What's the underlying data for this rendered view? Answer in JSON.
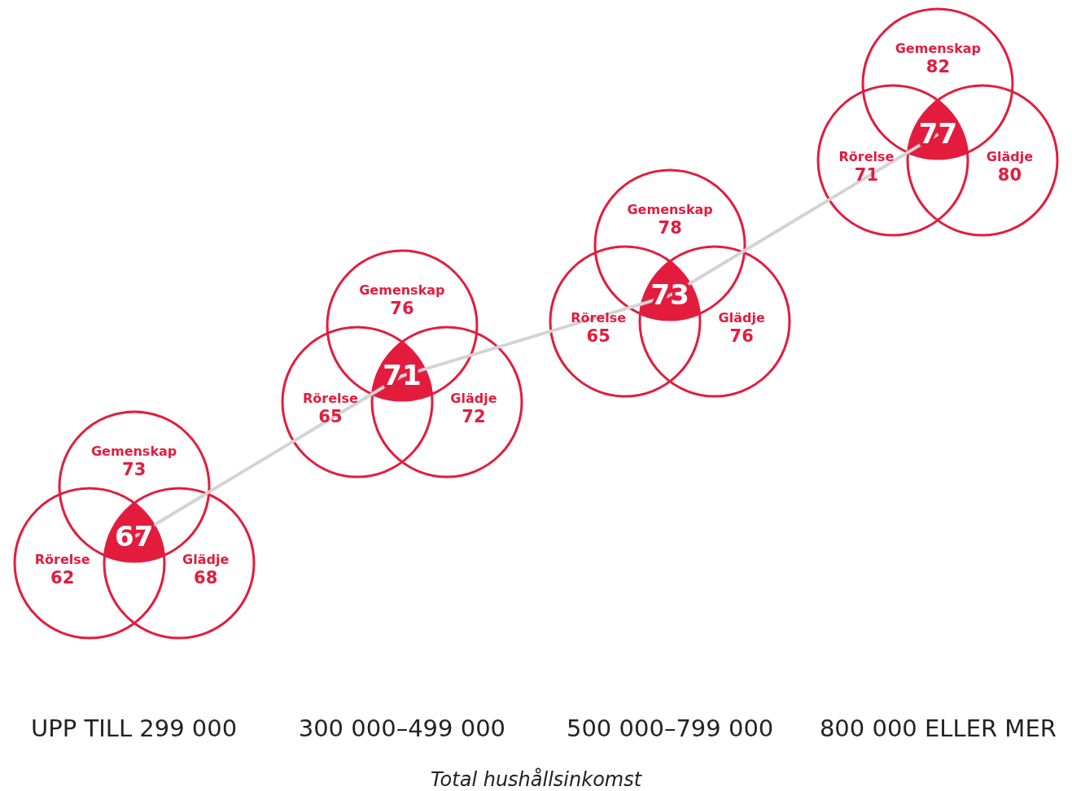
{
  "chart_data": {
    "type": "other",
    "xlabel": "Total hushållsinkomst",
    "categories": [
      "UPP TILL 299 000",
      "300 000–499 000",
      "500 000–799 000",
      "800 000 ELLER MER"
    ],
    "data_labels": true,
    "series": [
      {
        "type": "line",
        "color": "#d3d3d3",
        "colors": [
          "#e31c3d",
          "#e31c3d",
          "#e31c3d",
          "#e31c3d"
        ],
        "values": [
          67,
          71,
          73,
          77
        ]
      },
      {
        "type": "other",
        "name": "Gemenskap",
        "color": "#e31c3d",
        "values": [
          73,
          76,
          78,
          82
        ]
      },
      {
        "type": "other",
        "name": "Rörelse",
        "color": "#e31c3d",
        "values": [
          62,
          65,
          65,
          71
        ]
      },
      {
        "type": "other",
        "name": "Glädje",
        "color": "#e31c3d",
        "values": [
          68,
          72,
          76,
          80
        ]
      }
    ]
  }
}
